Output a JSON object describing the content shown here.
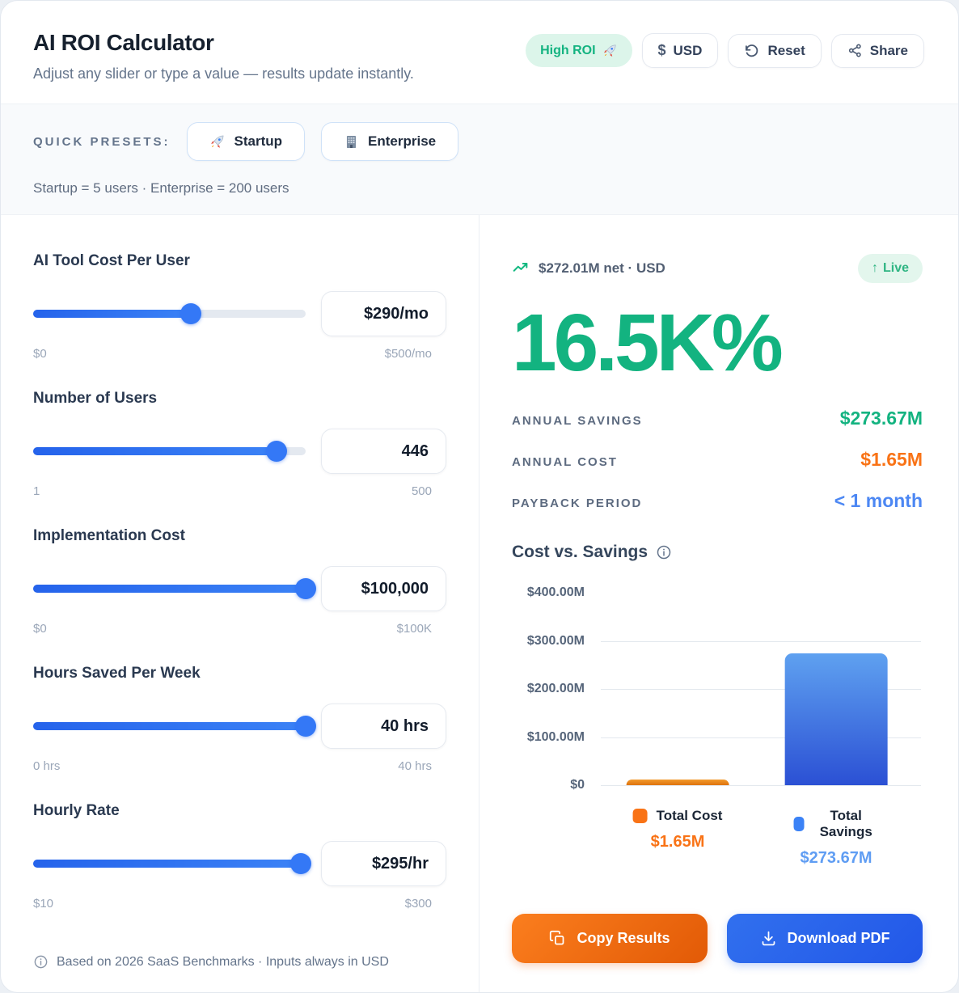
{
  "theme": {
    "green": "#13b380",
    "orange": "#f97316",
    "blue": "#2563eb",
    "light_blue": "#5f9df3"
  },
  "header": {
    "title": "AI ROI Calculator",
    "subtitle": "Adjust any slider or type a value — results update instantly.",
    "badge": {
      "label": "High ROI",
      "icon": "rocket"
    },
    "buttons": {
      "currency_symbol": "$",
      "currency": "USD",
      "reset": "Reset",
      "share": "Share"
    }
  },
  "presets": {
    "label": "QUICK PRESETS:",
    "options": [
      {
        "icon": "rocket",
        "label": "Startup"
      },
      {
        "icon": "building",
        "label": "Enterprise"
      }
    ],
    "caption": "Startup = 5 users · Enterprise = 200 users"
  },
  "inputs": {
    "sliders": [
      {
        "label": "AI Tool Cost Per User",
        "value_display": "$290/mo",
        "value": 290,
        "min": 0,
        "max": 500,
        "min_label": "$0",
        "max_label": "$500/mo"
      },
      {
        "label": "Number of Users",
        "value_display": "446",
        "value": 446,
        "min": 1,
        "max": 500,
        "min_label": "1",
        "max_label": "500"
      },
      {
        "label": "Implementation Cost",
        "value_display": "$100,000",
        "value": 100000,
        "min": 0,
        "max": 100000,
        "min_label": "$0",
        "max_label": "$100K"
      },
      {
        "label": "Hours Saved Per Week",
        "value_display": "40 hrs",
        "value": 40,
        "min": 0,
        "max": 40,
        "min_label": "0 hrs",
        "max_label": "40 hrs"
      },
      {
        "label": "Hourly Rate",
        "value_display": "$295/hr",
        "value": 295,
        "min": 10,
        "max": 300,
        "min_label": "$10",
        "max_label": "$300"
      }
    ],
    "footnote": "Based on 2026 SaaS Benchmarks · Inputs always in USD"
  },
  "results": {
    "net_line": "$272.01M net · USD",
    "live_arrow": "↑",
    "live_badge": "Live",
    "roi_percent": "16.5K%",
    "stats": [
      {
        "label": "ANNUAL SAVINGS",
        "value": "$273.67M",
        "color": "#13b380"
      },
      {
        "label": "ANNUAL COST",
        "value": "$1.65M",
        "color": "#f97316"
      },
      {
        "label": "PAYBACK PERIOD",
        "value": "< 1 month",
        "color": "#4c87f3"
      }
    ],
    "actions": {
      "copy": "Copy Results",
      "download": "Download PDF"
    }
  },
  "chart_data": {
    "type": "bar",
    "title": "Cost vs. Savings",
    "categories": [
      "Total Cost",
      "Total Savings"
    ],
    "values": [
      1.65,
      273.67
    ],
    "value_labels": [
      "$1.65M",
      "$273.67M"
    ],
    "unit": "USD millions",
    "ylim": [
      0,
      400
    ],
    "yticks": [
      0,
      100,
      200,
      300,
      400
    ],
    "ytick_labels": [
      "$0",
      "$100.00M",
      "$200.00M",
      "$300.00M",
      "$400.00M"
    ],
    "colors": [
      "#f97316",
      "#3b82f6"
    ],
    "value_colors": [
      "#f97316",
      "#5f9df3"
    ],
    "grid": true,
    "legend_position": "bottom"
  }
}
